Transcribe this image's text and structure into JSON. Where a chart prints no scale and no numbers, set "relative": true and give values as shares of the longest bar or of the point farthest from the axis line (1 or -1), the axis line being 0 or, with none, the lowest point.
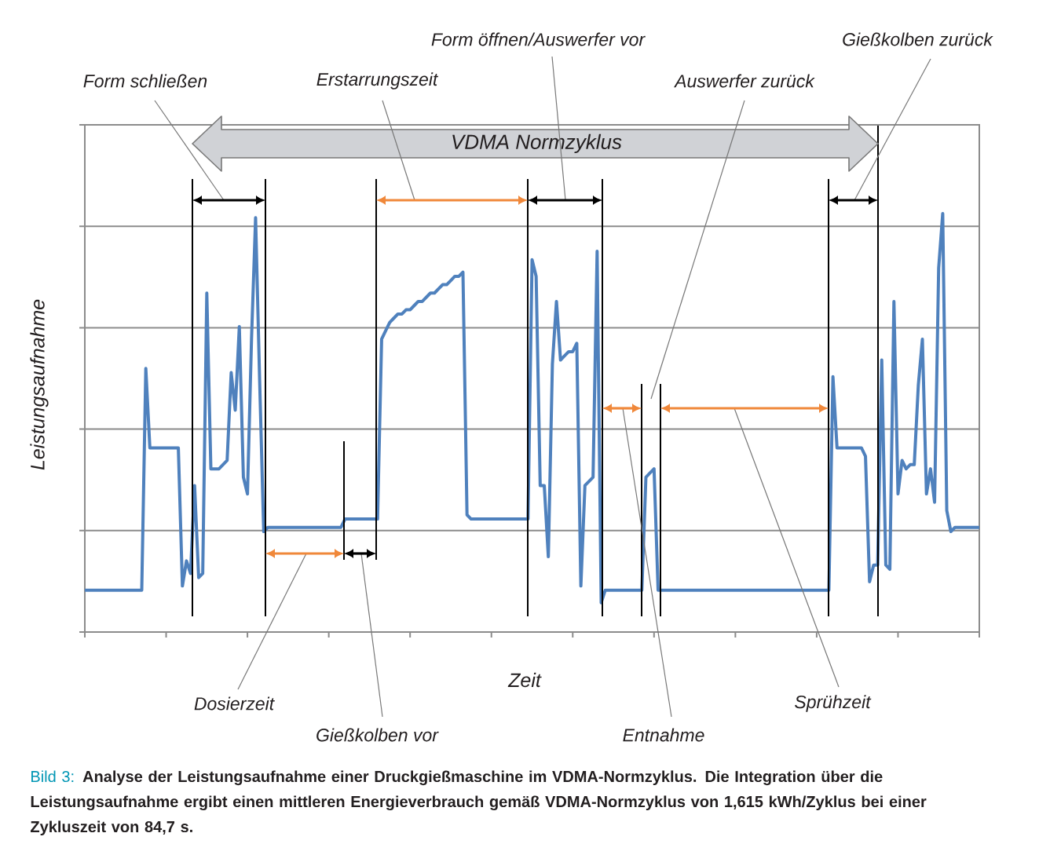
{
  "chart_data": {
    "type": "line",
    "relative": true,
    "xlabel": "Zeit",
    "ylabel": "Leistungsaufnahme",
    "grid": "y",
    "categories": [
      null,
      null,
      null,
      null,
      null,
      null,
      null,
      null,
      null,
      null,
      null,
      null,
      null,
      null,
      null,
      null,
      null,
      null,
      null,
      null,
      null,
      null,
      null,
      null,
      null,
      null,
      null,
      null,
      null,
      null,
      null,
      null,
      null,
      null,
      null,
      null,
      null,
      null,
      null,
      null,
      null,
      null,
      null,
      null,
      null,
      null,
      null,
      null,
      null,
      null,
      null,
      null,
      null,
      null,
      null,
      null,
      null,
      null,
      null,
      null,
      null,
      null,
      null,
      null,
      null,
      null,
      null,
      null,
      null,
      null,
      null,
      null,
      null,
      null,
      null,
      null,
      null,
      null,
      null,
      null,
      null,
      null,
      null,
      null,
      null,
      null,
      null,
      null,
      null,
      null,
      null,
      null,
      null,
      null,
      null,
      null,
      null,
      null,
      null,
      null,
      null,
      null,
      null,
      null,
      null,
      null,
      null,
      null,
      null,
      null,
      null,
      null,
      null,
      null,
      null,
      null,
      null,
      null,
      null,
      null,
      null,
      null,
      null,
      null,
      null,
      null,
      null,
      null,
      null,
      null,
      null,
      null,
      null,
      null,
      null,
      null,
      null,
      null,
      null,
      null,
      null,
      null,
      null,
      null,
      null,
      null,
      null,
      null,
      null,
      null,
      null,
      null,
      null,
      null,
      null,
      null,
      null,
      null,
      null,
      null,
      null,
      null,
      null,
      null,
      null,
      null,
      null,
      null,
      null,
      null,
      null,
      null,
      null,
      null,
      null,
      null,
      null,
      null,
      null,
      null,
      null,
      null,
      null,
      null,
      null,
      null,
      null,
      null,
      null,
      null,
      null,
      null,
      null,
      null,
      null,
      null,
      null,
      null,
      null,
      null,
      null,
      null,
      null,
      null,
      null,
      null,
      null,
      null,
      null,
      null,
      null,
      null,
      null,
      null,
      null,
      null,
      null,
      null,
      null,
      null,
      null
    ],
    "series": [
      {
        "color": "#4f81bd",
        "values": [
          0.1,
          0.1,
          0.1,
          0.1,
          0.1,
          0.1,
          0.1,
          0.1,
          0.1,
          0.1,
          0.1,
          0.1,
          0.1,
          0.1,
          0.1,
          0.63,
          0.44,
          0.44,
          0.44,
          0.44,
          0.44,
          0.44,
          0.44,
          0.44,
          0.11,
          0.17,
          0.14,
          0.35,
          0.13,
          0.14,
          0.81,
          0.39,
          0.39,
          0.39,
          0.4,
          0.41,
          0.62,
          0.53,
          0.73,
          0.37,
          0.33,
          0.7,
          0.99,
          0.6,
          0.24,
          0.25,
          0.25,
          0.25,
          0.25,
          0.25,
          0.25,
          0.25,
          0.25,
          0.25,
          0.25,
          0.25,
          0.25,
          0.25,
          0.25,
          0.25,
          0.25,
          0.25,
          0.25,
          0.25,
          0.27,
          0.27,
          0.27,
          0.27,
          0.27,
          0.27,
          0.27,
          0.27,
          0.27,
          0.7,
          0.72,
          0.74,
          0.75,
          0.76,
          0.76,
          0.77,
          0.77,
          0.78,
          0.79,
          0.79,
          0.8,
          0.81,
          0.81,
          0.82,
          0.83,
          0.83,
          0.84,
          0.85,
          0.85,
          0.86,
          0.28,
          0.27,
          0.27,
          0.27,
          0.27,
          0.27,
          0.27,
          0.27,
          0.27,
          0.27,
          0.27,
          0.27,
          0.27,
          0.27,
          0.27,
          0.27,
          0.89,
          0.85,
          0.35,
          0.35,
          0.18,
          0.64,
          0.79,
          0.65,
          0.66,
          0.67,
          0.67,
          0.69,
          0.11,
          0.35,
          0.36,
          0.37,
          0.91,
          0.07,
          0.1,
          0.1,
          0.1,
          0.1,
          0.1,
          0.1,
          0.1,
          0.1,
          0.1,
          0.1,
          0.37,
          0.38,
          0.39,
          0.1,
          0.1,
          0.1,
          0.1,
          0.1,
          0.1,
          0.1,
          0.1,
          0.1,
          0.1,
          0.1,
          0.1,
          0.1,
          0.1,
          0.1,
          0.1,
          0.1,
          0.1,
          0.1,
          0.1,
          0.1,
          0.1,
          0.1,
          0.1,
          0.1,
          0.1,
          0.1,
          0.1,
          0.1,
          0.1,
          0.1,
          0.1,
          0.1,
          0.1,
          0.1,
          0.1,
          0.1,
          0.1,
          0.1,
          0.1,
          0.1,
          0.1,
          0.1,
          0.61,
          0.44,
          0.44,
          0.44,
          0.44,
          0.44,
          0.44,
          0.44,
          0.42,
          0.12,
          0.16,
          0.16,
          0.65,
          0.16,
          0.15,
          0.79,
          0.33,
          0.41,
          0.39,
          0.4,
          0.4,
          0.59,
          0.7,
          0.33,
          0.39,
          0.31,
          0.87,
          1,
          0.29,
          0.24,
          0.25,
          0.25,
          0.25,
          0.25,
          0.25,
          0.25,
          0.25
        ]
      }
    ],
    "annotations": [
      "VDMA Normzyklus",
      "Form schließen",
      "Erstarrungszeit",
      "Form öffnen/Auswerfer vor",
      "Gießkolben zurück",
      "Dosierzeit",
      "Gießkolben vor",
      "Entnahme",
      "Sprühzeit",
      "Auswerfer zurück",
      "Bild 3:",
      "Analyse der Leistungsaufnahme einer Druckgießmaschine im VDMA-Normzyklus. Die Integration über die Leistungsaufnahme ergibt einen mittleren Energieverbrauch gemäß VDMA-Normzyklus von 1,615 kWh/Zyklus bei einer Zykluszeit von 84,7 s."
    ]
  }
}
